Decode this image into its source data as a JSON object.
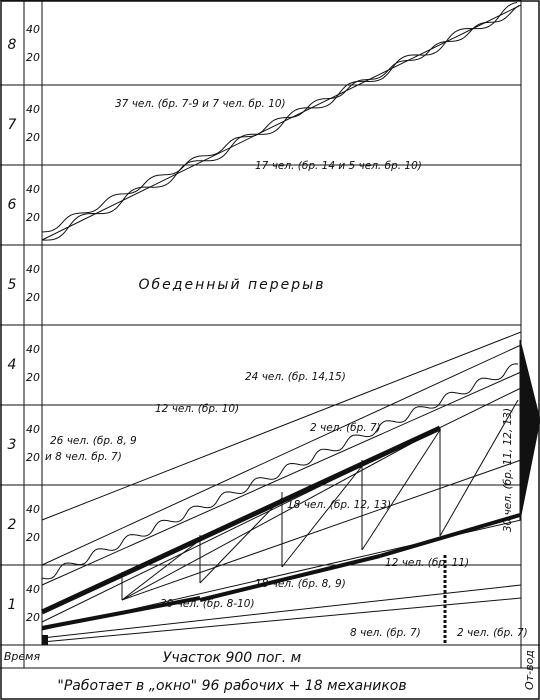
{
  "hours": [
    "1",
    "2",
    "3",
    "4",
    "5",
    "6",
    "7",
    "8"
  ],
  "minute_ticks": [
    "20",
    "40"
  ],
  "break_label": "Обеденный перерыв",
  "time_label": "Время",
  "section_label": "Участок 900 пог. м",
  "footer": "\"Работает в „окно\" 96 рабочих + 18 механиков",
  "side_label": "От-вод",
  "annotations": [
    "37 чел. (бр. 7-9 и 7 чел. бр. 10)",
    "17 чел. (бр. 14 и 5 чел. бр. 10)",
    "24 чел. (бр. 14,15)",
    "12 чел. (бр. 10)",
    "2 чел. (бр. 7)",
    "26 чел. (бр. 8, 9",
    "и 8 чел. бр. 7)",
    "18 чел. (бр. 12, 13)",
    "30 чел. (бр. 11, 12, 13)",
    "12 чел. (бр. 11)",
    "18 чел. (бр. 8, 9)",
    "30 чел. (бр. 8-10)",
    "8 чел. (бр. 7)",
    "2 чел. (бр. 7)"
  ]
}
